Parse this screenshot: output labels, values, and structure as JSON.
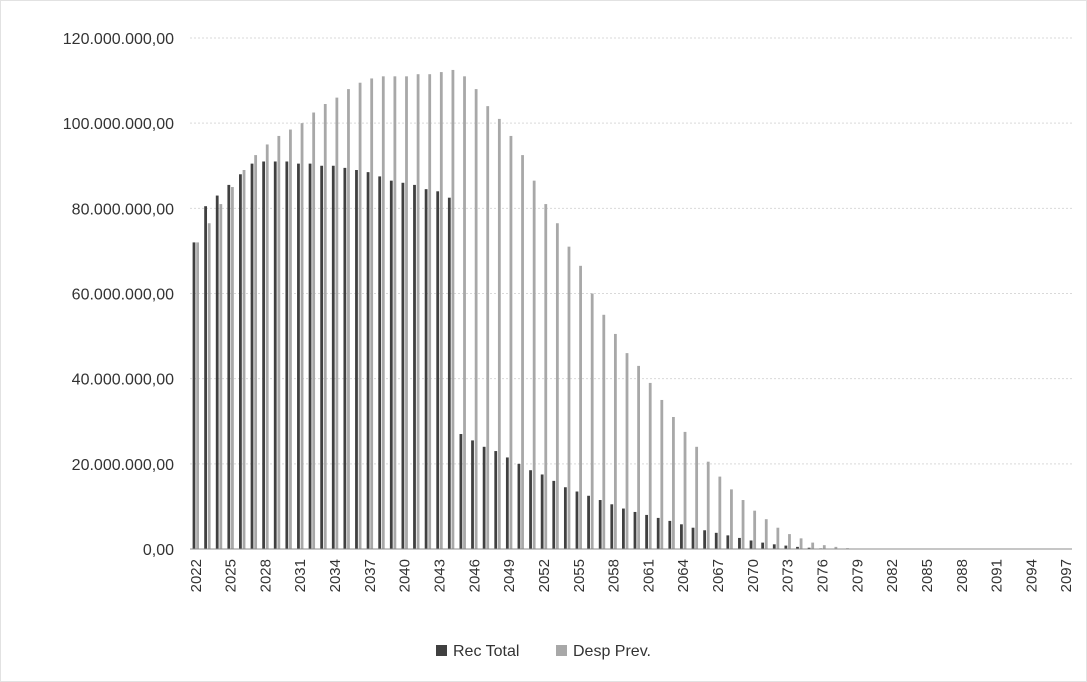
{
  "chart_data": {
    "type": "bar",
    "title": "",
    "xlabel": "",
    "ylabel": "",
    "ylim": [
      0,
      120000000
    ],
    "yticks": [
      0,
      20000000,
      40000000,
      60000000,
      80000000,
      100000000,
      120000000
    ],
    "ytick_labels": [
      "0,00",
      "20.000.000,00",
      "40.000.000,00",
      "60.000.000,00",
      "80.000.000,00",
      "100.000.000,00",
      "120.000.000,00"
    ],
    "grid": true,
    "legend_position": "bottom",
    "x": [
      2022,
      2023,
      2024,
      2025,
      2026,
      2027,
      2028,
      2029,
      2030,
      2031,
      2032,
      2033,
      2034,
      2035,
      2036,
      2037,
      2038,
      2039,
      2040,
      2041,
      2042,
      2043,
      2044,
      2045,
      2046,
      2047,
      2048,
      2049,
      2050,
      2051,
      2052,
      2053,
      2054,
      2055,
      2056,
      2057,
      2058,
      2059,
      2060,
      2061,
      2062,
      2063,
      2064,
      2065,
      2066,
      2067,
      2068,
      2069,
      2070,
      2071,
      2072,
      2073,
      2074,
      2075,
      2076,
      2077,
      2078,
      2079,
      2080,
      2081,
      2082,
      2083,
      2084,
      2085,
      2086,
      2087,
      2088,
      2089,
      2090,
      2091,
      2092,
      2093,
      2094,
      2095,
      2096,
      2097
    ],
    "xtick_labels": [
      "2022",
      "2025",
      "2028",
      "2031",
      "2034",
      "2037",
      "2040",
      "2043",
      "2046",
      "2049",
      "2052",
      "2055",
      "2058",
      "2061",
      "2064",
      "2067",
      "2070",
      "2073",
      "2076",
      "2079",
      "2082",
      "2085",
      "2088",
      "2091",
      "2094",
      "2097"
    ],
    "series": [
      {
        "name": "Rec Total",
        "color": "#404040",
        "values": [
          72000000,
          80500000,
          83000000,
          85500000,
          88000000,
          90500000,
          91000000,
          91000000,
          91000000,
          90500000,
          90500000,
          90000000,
          90000000,
          89500000,
          89000000,
          88500000,
          87500000,
          86500000,
          86000000,
          85500000,
          84500000,
          84000000,
          82500000,
          27000000,
          25500000,
          24000000,
          23000000,
          21500000,
          20000000,
          18500000,
          17500000,
          16000000,
          14500000,
          13500000,
          12500000,
          11500000,
          10500000,
          9500000,
          8700000,
          8000000,
          7300000,
          6600000,
          5800000,
          5000000,
          4400000,
          3800000,
          3200000,
          2600000,
          2000000,
          1500000,
          1100000,
          800000,
          500000,
          300000,
          150000,
          80000,
          30000,
          10000,
          0,
          0,
          0,
          0,
          0,
          0,
          0,
          0,
          0,
          0,
          0,
          0,
          0,
          0,
          0,
          0,
          0,
          0
        ]
      },
      {
        "name": "Desp Prev.",
        "color": "#a8a8a8",
        "values": [
          72000000,
          76500000,
          81000000,
          85000000,
          89000000,
          92500000,
          95000000,
          97000000,
          98500000,
          100000000,
          102500000,
          104500000,
          106000000,
          108000000,
          109500000,
          110500000,
          111000000,
          111000000,
          111000000,
          111500000,
          111500000,
          112000000,
          112500000,
          111000000,
          108000000,
          104000000,
          101000000,
          97000000,
          92500000,
          86500000,
          81000000,
          76500000,
          71000000,
          66500000,
          60000000,
          55000000,
          50500000,
          46000000,
          43000000,
          39000000,
          35000000,
          31000000,
          27500000,
          24000000,
          20500000,
          17000000,
          14000000,
          11500000,
          9000000,
          7000000,
          5000000,
          3500000,
          2500000,
          1500000,
          900000,
          500000,
          200000,
          100000,
          0,
          0,
          0,
          0,
          0,
          0,
          0,
          0,
          0,
          0,
          0,
          0,
          0,
          0,
          0,
          0,
          0,
          0
        ]
      }
    ]
  }
}
